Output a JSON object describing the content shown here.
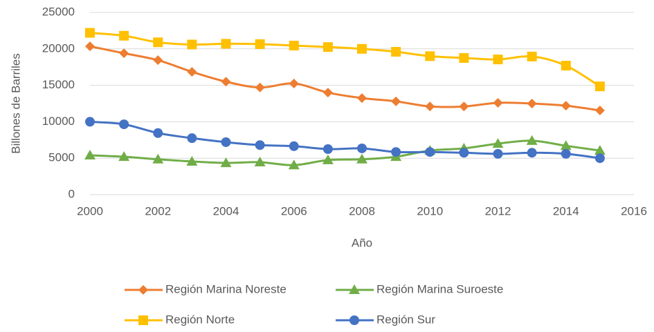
{
  "chart_data": {
    "type": "line",
    "x": [
      2000,
      2001,
      2002,
      2003,
      2004,
      2005,
      2006,
      2007,
      2008,
      2009,
      2010,
      2011,
      2012,
      2013,
      2014,
      2015
    ],
    "x_label": "Año",
    "y_label": "Billones de Barriles",
    "xlim": [
      2000,
      2016
    ],
    "xticks": [
      2000,
      2002,
      2004,
      2006,
      2008,
      2010,
      2012,
      2014,
      2016
    ],
    "ylim": [
      0,
      25000
    ],
    "yticks": [
      0,
      5000,
      10000,
      15000,
      20000,
      25000
    ],
    "grid": true,
    "legend": "bottom",
    "series": [
      {
        "name": "Región Marina Noreste",
        "color": "#ED7D31",
        "marker": "diamond",
        "values": [
          20350,
          19400,
          18450,
          16850,
          15500,
          14700,
          15250,
          14000,
          13250,
          12800,
          12100,
          12100,
          12600,
          12500,
          12200,
          11550
        ]
      },
      {
        "name": "Región Marina Suroeste",
        "color": "#70AD47",
        "marker": "triangle",
        "values": [
          5400,
          5200,
          4850,
          4550,
          4350,
          4450,
          4050,
          4750,
          4850,
          5200,
          6050,
          6350,
          7000,
          7400,
          6700,
          6050
        ]
      },
      {
        "name": "Región Norte",
        "color": "#FFC000",
        "marker": "square",
        "values": [
          22200,
          21800,
          20900,
          20600,
          20700,
          20650,
          20450,
          20250,
          20000,
          19600,
          19000,
          18750,
          18550,
          18950,
          17700,
          14850
        ]
      },
      {
        "name": "Región Sur",
        "color": "#4472C4",
        "marker": "circle",
        "values": [
          10000,
          9650,
          8450,
          7750,
          7200,
          6800,
          6650,
          6250,
          6350,
          5850,
          5850,
          5750,
          5600,
          5750,
          5600,
          5000
        ]
      }
    ]
  }
}
